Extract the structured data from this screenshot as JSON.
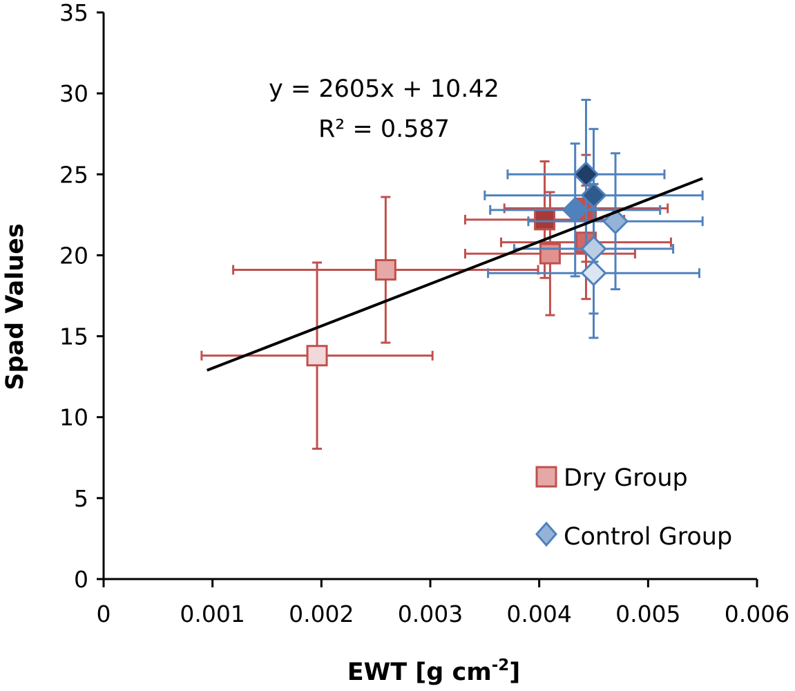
{
  "chart_data": {
    "type": "scatter",
    "title": "",
    "xlabel_main": "EWT [g cm",
    "xlabel_sup": "-2",
    "xlabel_tail": "]",
    "ylabel": "Spad Values",
    "xlim": [
      0,
      0.006
    ],
    "ylim": [
      0,
      35
    ],
    "x_ticks": [
      0,
      0.001,
      0.002,
      0.003,
      0.004,
      0.005,
      0.006
    ],
    "x_tick_labels": [
      "0",
      "0.001",
      "0.002",
      "0.003",
      "0.004",
      "0.005",
      "0.006"
    ],
    "y_ticks": [
      0,
      5,
      10,
      15,
      20,
      25,
      30,
      35
    ],
    "y_tick_labels": [
      "0",
      "5",
      "10",
      "15",
      "20",
      "25",
      "30",
      "35"
    ],
    "grid": false,
    "legend_position": "bottom-right",
    "series": [
      {
        "name": "Dry Group",
        "marker": "square",
        "stroke_color": "#c0504d",
        "points": [
          {
            "x": 0.00196,
            "y": 13.8,
            "xerr": 0.00106,
            "yerr": 5.75,
            "fill": "#f2d9d9"
          },
          {
            "x": 0.00259,
            "y": 19.1,
            "xerr": 0.0014,
            "yerr": 4.5,
            "fill": "#e6a8a6"
          },
          {
            "x": 0.0041,
            "y": 20.1,
            "xerr": 0.00078,
            "yerr": 3.8,
            "fill": "#e0928f"
          },
          {
            "x": 0.00405,
            "y": 22.2,
            "xerr": 0.00073,
            "yerr": 3.6,
            "fill": "#a83a36"
          },
          {
            "x": 0.00443,
            "y": 20.8,
            "xerr": 0.00078,
            "yerr": 3.5,
            "fill": "#d06a67"
          },
          {
            "x": 0.00443,
            "y": 22.9,
            "xerr": 0.00075,
            "yerr": 3.3,
            "fill": "#c0504d"
          }
        ]
      },
      {
        "name": "Control Group",
        "marker": "diamond",
        "stroke_color": "#4f81bd",
        "points": [
          {
            "x": 0.00443,
            "y": 25.0,
            "xerr": 0.00072,
            "yerr": 4.6,
            "fill": "#1f3f66"
          },
          {
            "x": 0.0045,
            "y": 23.7,
            "xerr": 0.001,
            "yerr": 4.1,
            "fill": "#2e5a8c"
          },
          {
            "x": 0.00433,
            "y": 22.8,
            "xerr": 0.00078,
            "yerr": 4.1,
            "fill": "#4f81bd"
          },
          {
            "x": 0.0047,
            "y": 22.1,
            "xerr": 0.0008,
            "yerr": 4.2,
            "fill": "#95b3d7"
          },
          {
            "x": 0.0045,
            "y": 20.4,
            "xerr": 0.00073,
            "yerr": 4.0,
            "fill": "#b9cde5"
          },
          {
            "x": 0.0045,
            "y": 18.9,
            "xerr": 0.00097,
            "yerr": 4.0,
            "fill": "#dce6f2"
          }
        ]
      }
    ],
    "trendline": {
      "x_start": 0.00095,
      "x_end": 0.0055,
      "slope": 2605,
      "intercept": 10.42,
      "equation": "y = 2605x + 10.42",
      "r2": "R² = 0.587"
    },
    "legend": {
      "dry_label": "Dry Group",
      "dry_fill": "#e6a8a6",
      "control_label": "Control Group",
      "control_fill": "#95b3d7"
    }
  }
}
